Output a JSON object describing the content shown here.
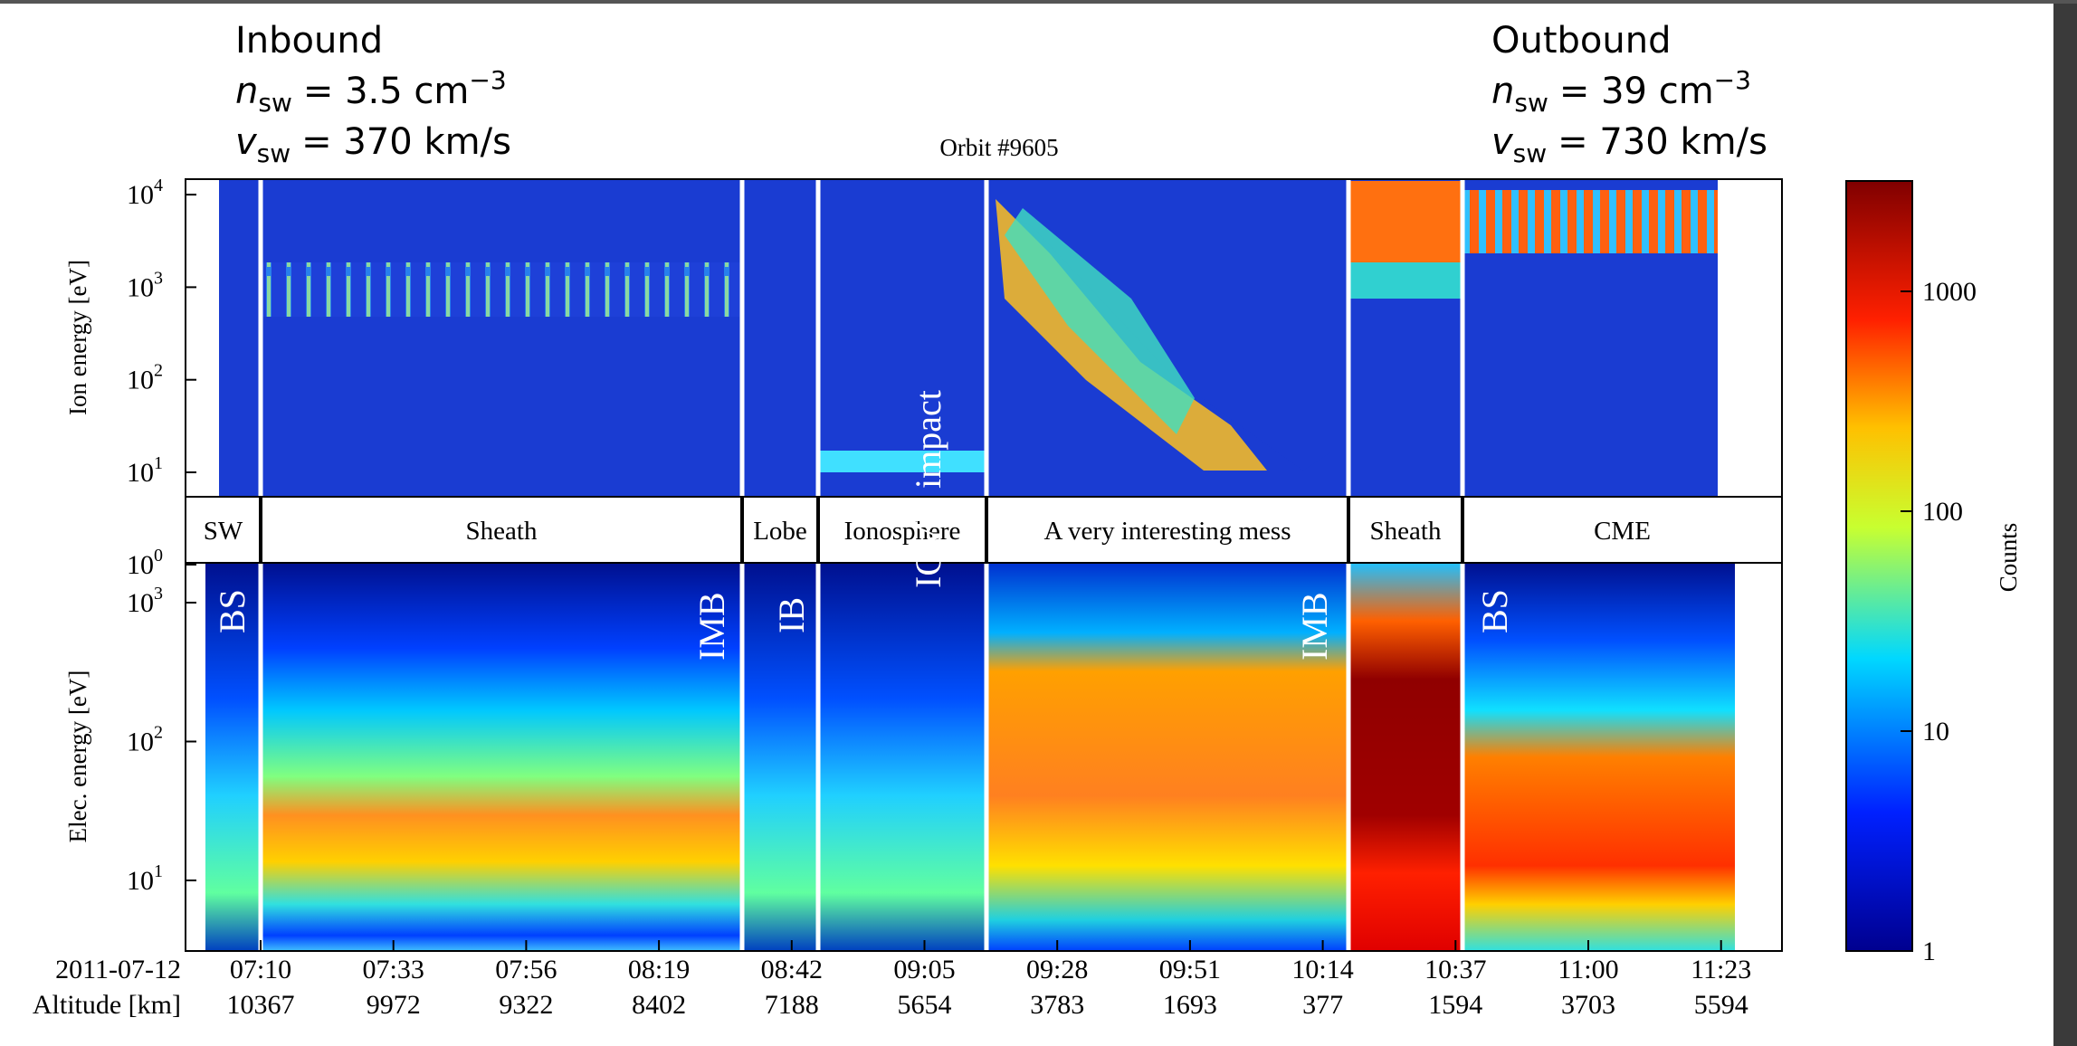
{
  "header": {
    "inbound": {
      "title": "Inbound",
      "density": {
        "symbol": "n",
        "subscript": "sw",
        "value": "= 3.5 cm",
        "exponent": "−3"
      },
      "speed": {
        "symbol": "v",
        "subscript": "sw",
        "value": "= 370 km/s"
      }
    },
    "outbound": {
      "title": "Outbound",
      "density": {
        "symbol": "n",
        "subscript": "sw",
        "value": "= 39 cm",
        "exponent": "−3"
      },
      "speed": {
        "symbol": "v",
        "subscript": "sw",
        "value": "= 730 km/s"
      }
    },
    "orbit": "Orbit #9605"
  },
  "ion_panel": {
    "ylabel": "Ion energy [eV]",
    "yticks": [
      {
        "base": "10",
        "exponent": "1"
      },
      {
        "base": "10",
        "exponent": "2"
      },
      {
        "base": "10",
        "exponent": "3"
      },
      {
        "base": "10",
        "exponent": "4"
      }
    ]
  },
  "regions": {
    "labels": [
      "SW",
      "Sheath",
      "Lobe",
      "Ionosphere",
      "A very interesting mess",
      "Sheath",
      "CME"
    ],
    "tick": {
      "base": "10",
      "exponent": "0"
    }
  },
  "elec_panel": {
    "ylabel": "Elec. energy [eV]",
    "yticks": [
      {
        "base": "10",
        "exponent": "1"
      },
      {
        "base": "10",
        "exponent": "2"
      },
      {
        "base": "10",
        "exponent": "3"
      }
    ],
    "annotations": [
      "BS",
      "IMB",
      "IB",
      "ICME impact",
      "IMB",
      "BS"
    ]
  },
  "x_axis": {
    "date": "2011-07-12",
    "altitude_label": "Altitude [km]",
    "times": [
      "07:10",
      "07:33",
      "07:56",
      "08:19",
      "08:42",
      "09:05",
      "09:28",
      "09:51",
      "10:14",
      "10:37",
      "11:00",
      "11:23"
    ],
    "altitudes": [
      10367,
      9972,
      9322,
      8402,
      7188,
      5654,
      3783,
      1693,
      377,
      1594,
      3703,
      5594
    ]
  },
  "colorbar": {
    "label": "Counts",
    "ticks": [
      1,
      10,
      100,
      1000
    ]
  }
}
